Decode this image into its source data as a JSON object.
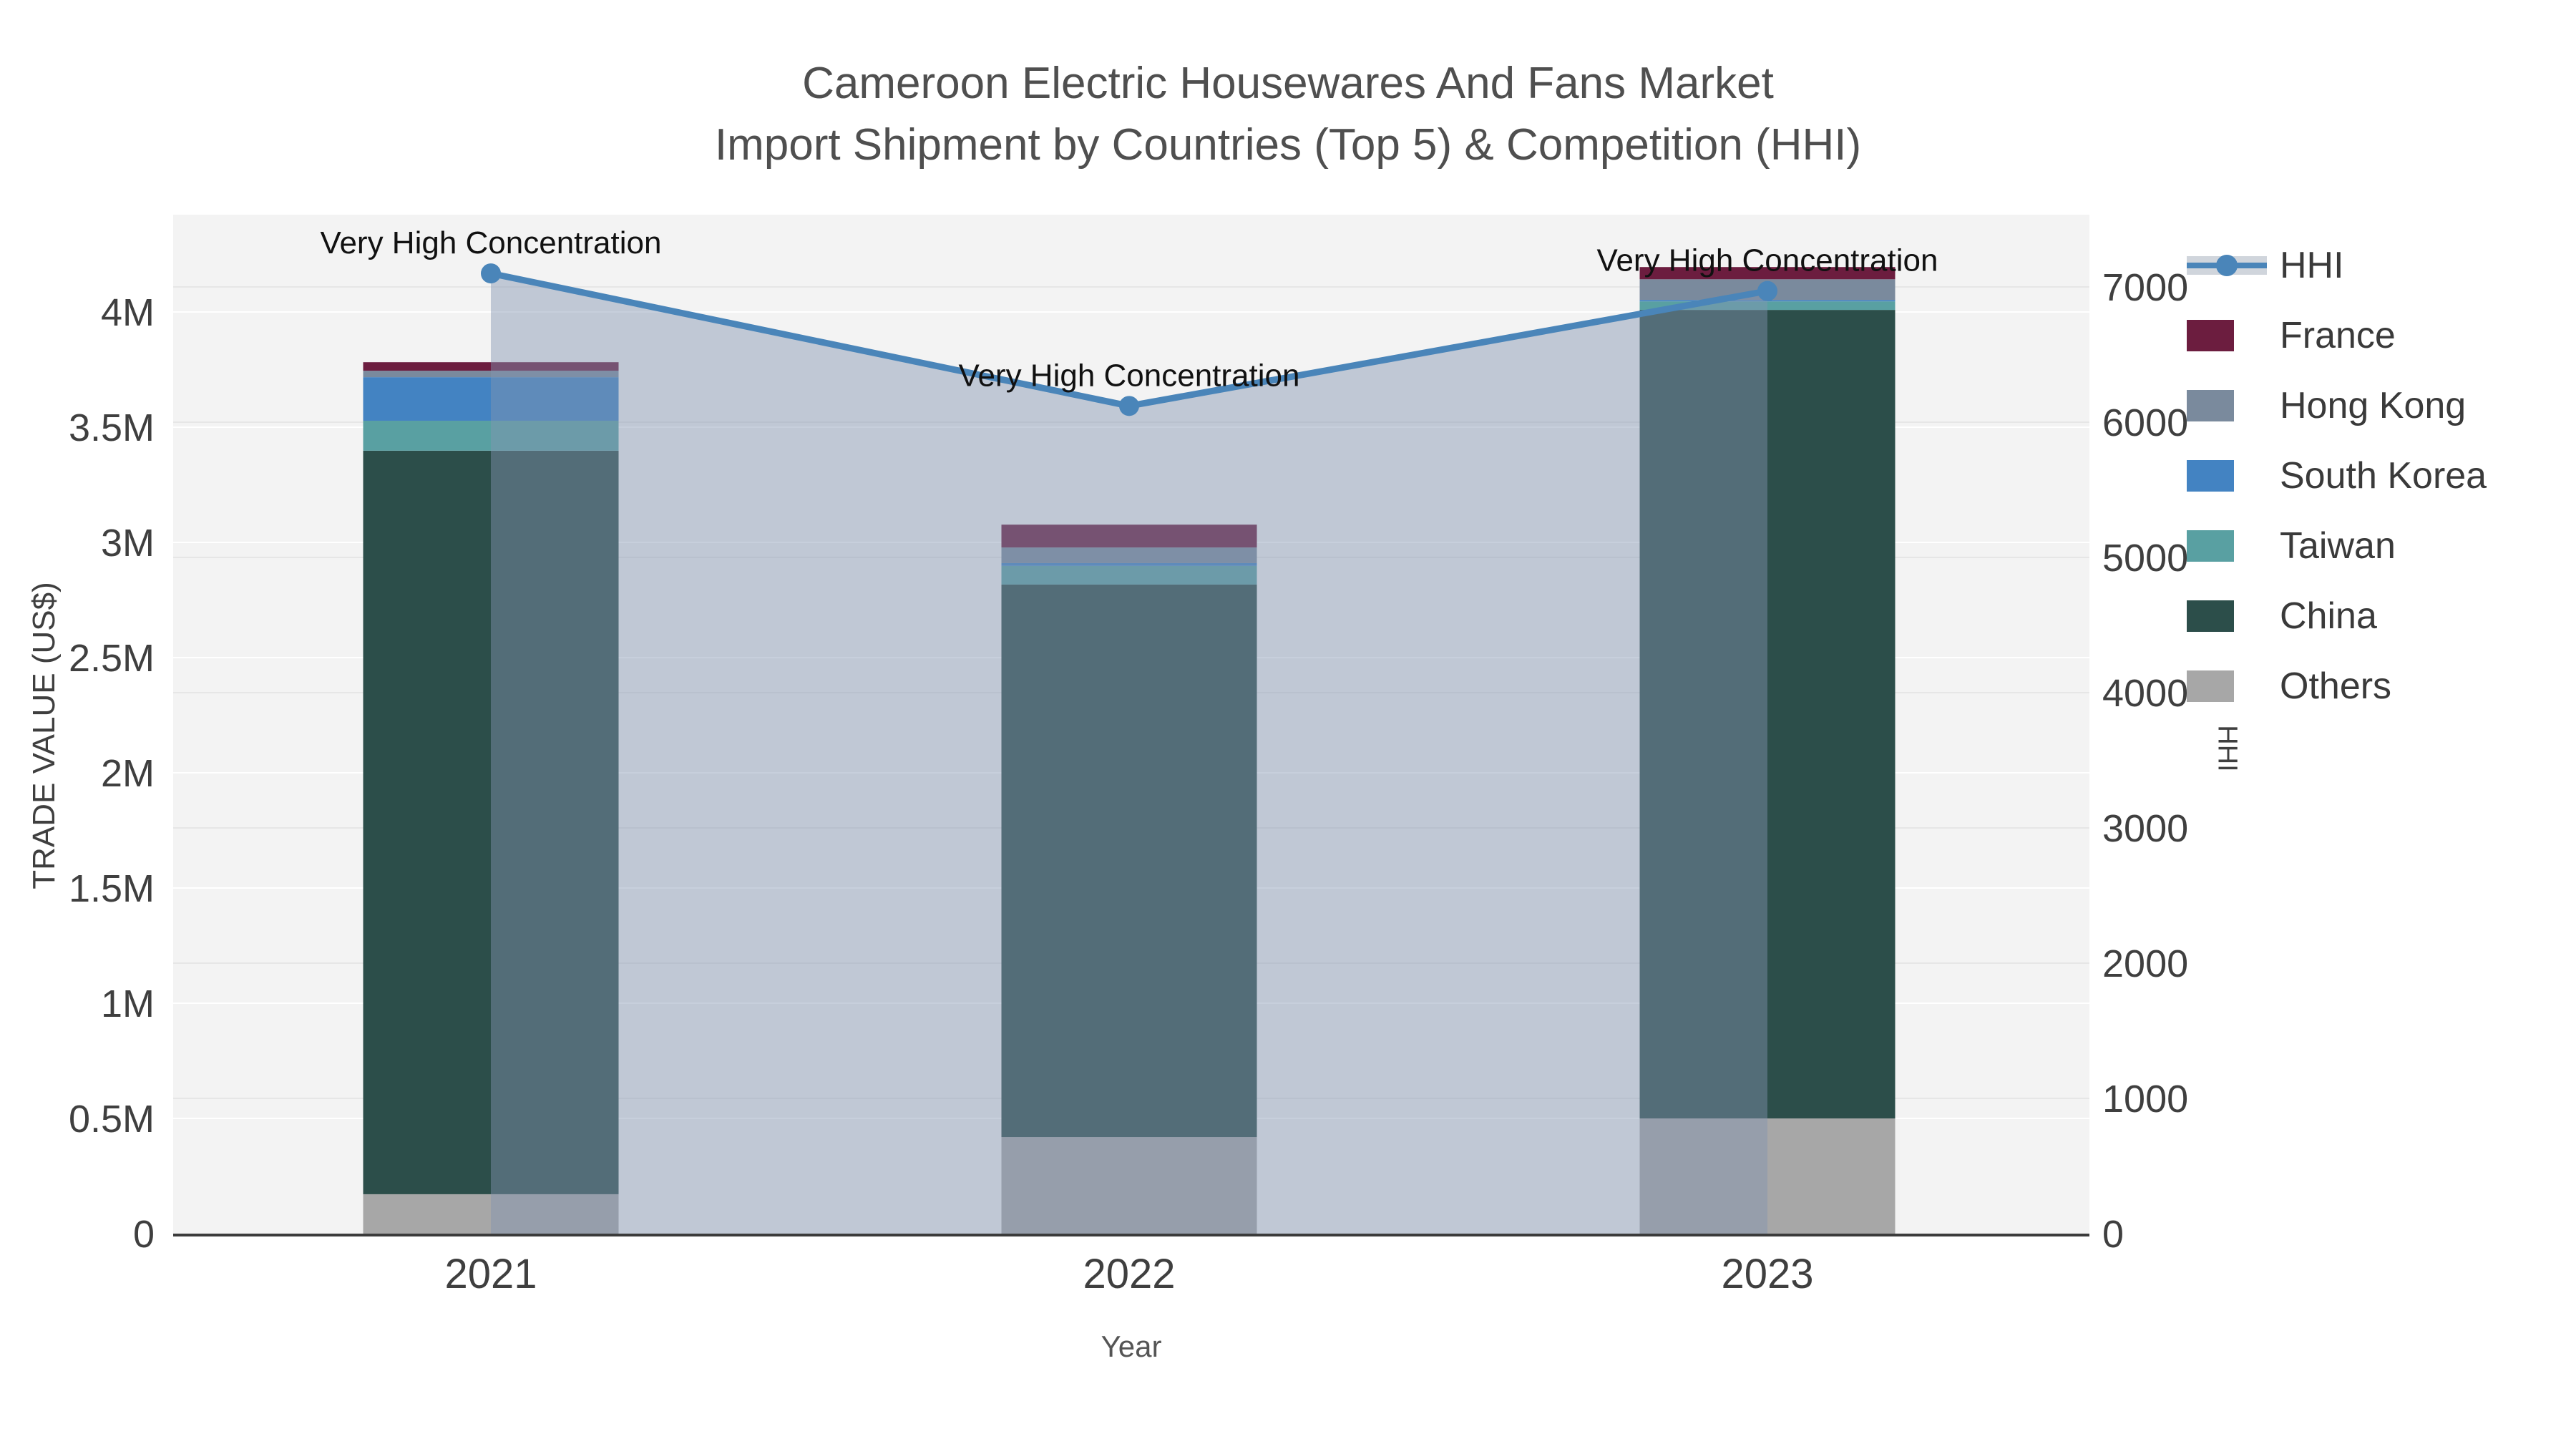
{
  "title": {
    "line1": "Cameroon Electric Housewares And Fans Market",
    "line2": "Import Shipment by Countries (Top 5) & Competition (HHI)"
  },
  "axes": {
    "x": {
      "title": "Year",
      "categories": [
        "2021",
        "2022",
        "2023"
      ]
    },
    "y_left": {
      "title": "TRADE VALUE (US$)",
      "ticks": [
        {
          "label": "0",
          "value": 0
        },
        {
          "label": "0.5M",
          "value": 500000
        },
        {
          "label": "1M",
          "value": 1000000
        },
        {
          "label": "1.5M",
          "value": 1500000
        },
        {
          "label": "2M",
          "value": 2000000
        },
        {
          "label": "2.5M",
          "value": 2500000
        },
        {
          "label": "3M",
          "value": 3000000
        },
        {
          "label": "3.5M",
          "value": 3500000
        },
        {
          "label": "4M",
          "value": 4000000
        }
      ]
    },
    "y_right": {
      "title": "HHI",
      "ticks": [
        {
          "label": "0",
          "value": 0
        },
        {
          "label": "1000",
          "value": 1000
        },
        {
          "label": "2000",
          "value": 2000
        },
        {
          "label": "3000",
          "value": 3000
        },
        {
          "label": "4000",
          "value": 4000
        },
        {
          "label": "5000",
          "value": 5000
        },
        {
          "label": "6000",
          "value": 6000
        },
        {
          "label": "7000",
          "value": 7000
        }
      ]
    }
  },
  "legend": {
    "order": [
      "HHI",
      "France",
      "Hong Kong",
      "South Korea",
      "Taiwan",
      "China",
      "Others"
    ]
  },
  "chart_data": {
    "type": "bar+line",
    "categories": [
      "2021",
      "2022",
      "2023"
    ],
    "stack_order_bottom_up": [
      "Others",
      "China",
      "Taiwan",
      "South Korea",
      "Hong Kong",
      "France"
    ],
    "bar_series": [
      {
        "name": "France",
        "color": "#6c1d3f",
        "values": [
          37000,
          99000,
          53000
        ]
      },
      {
        "name": "Hong Kong",
        "color": "#7a8a9d",
        "values": [
          28000,
          68000,
          90000
        ]
      },
      {
        "name": "South Korea",
        "color": "#4383c2",
        "values": [
          189000,
          12000,
          6000
        ]
      },
      {
        "name": "Taiwan",
        "color": "#59a0a2",
        "values": [
          130000,
          81000,
          37000
        ]
      },
      {
        "name": "China",
        "color": "#2c4e4a",
        "values": [
          3227000,
          2398000,
          3509000
        ]
      },
      {
        "name": "Others",
        "color": "#a7a7a7",
        "values": [
          171000,
          419000,
          500000
        ]
      }
    ],
    "bar_totals": [
      3782000,
      3077000,
      4195000
    ],
    "line_series": {
      "name": "HHI",
      "color": "#4a85b9",
      "fill_color": "rgba(130,148,178,0.45)",
      "values": [
        7100,
        6120,
        6970
      ]
    },
    "annotations": [
      {
        "text": "Very High Concentration",
        "category": "2021"
      },
      {
        "text": "Very High Concentration",
        "category": "2022"
      },
      {
        "text": "Very High Concentration",
        "category": "2023"
      }
    ],
    "y_left_range": [
      0,
      4420000
    ],
    "y_right_range": [
      0,
      7530
    ],
    "grid": true,
    "legend_position": "right"
  },
  "colors": {
    "plot_bg": "#f3f3f3",
    "grid_major": "#ffffff",
    "grid_minor": "#e6e6e6",
    "axis_line": "#3b3b3b",
    "tick_text": "#3f3f3f",
    "annotation_text": "#111111",
    "legend_hhi_band": "#d0d5dc"
  }
}
